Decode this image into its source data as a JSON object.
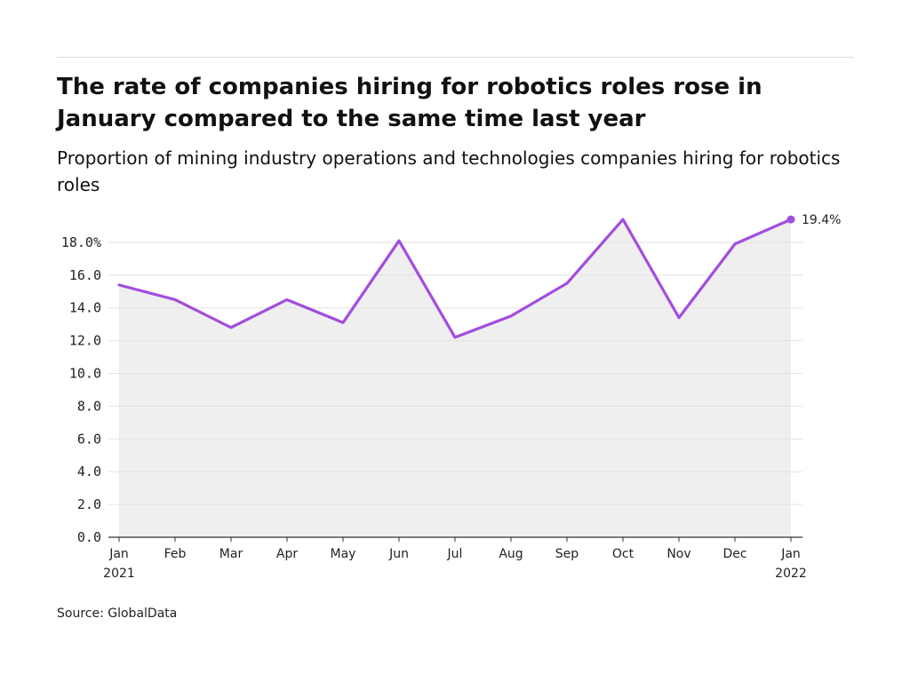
{
  "header": {
    "title": "The rate of companies hiring for robotics roles rose in January compared to the same time last year",
    "subtitle": "Proportion of mining industry operations and technologies companies hiring for robotics roles"
  },
  "footer": {
    "source": "Source: GlobalData"
  },
  "colors": {
    "line": "#a24ddf",
    "area": "#efefef",
    "grid": "#e3e3e3",
    "axis": "#333333"
  },
  "chart_data": {
    "type": "area",
    "categories": [
      "Jan 2021",
      "Feb",
      "Mar",
      "Apr",
      "May",
      "Jun",
      "Jul",
      "Aug",
      "Sep",
      "Oct",
      "Nov",
      "Dec",
      "Jan 2022"
    ],
    "x_tick_labels": [
      [
        "Jan",
        "2021"
      ],
      [
        "Feb"
      ],
      [
        "Mar"
      ],
      [
        "Apr"
      ],
      [
        "May"
      ],
      [
        "Jun"
      ],
      [
        "Jul"
      ],
      [
        "Aug"
      ],
      [
        "Sep"
      ],
      [
        "Oct"
      ],
      [
        "Nov"
      ],
      [
        "Dec"
      ],
      [
        "Jan",
        "2022"
      ]
    ],
    "values": [
      15.4,
      14.5,
      12.8,
      14.5,
      13.1,
      18.1,
      12.2,
      13.5,
      15.5,
      19.4,
      13.4,
      17.9,
      19.4
    ],
    "y_tick_labels": [
      "0.0",
      "2.0",
      "4.0",
      "6.0",
      "8.0",
      "10.0",
      "12.0",
      "14.0",
      "16.0",
      "18.0%"
    ],
    "y_ticks": [
      0,
      2,
      4,
      6,
      8,
      10,
      12,
      14,
      16,
      18
    ],
    "ylim": [
      0,
      20
    ],
    "data_label": "19.4%",
    "xlabel": "",
    "ylabel": "",
    "grid": true
  }
}
